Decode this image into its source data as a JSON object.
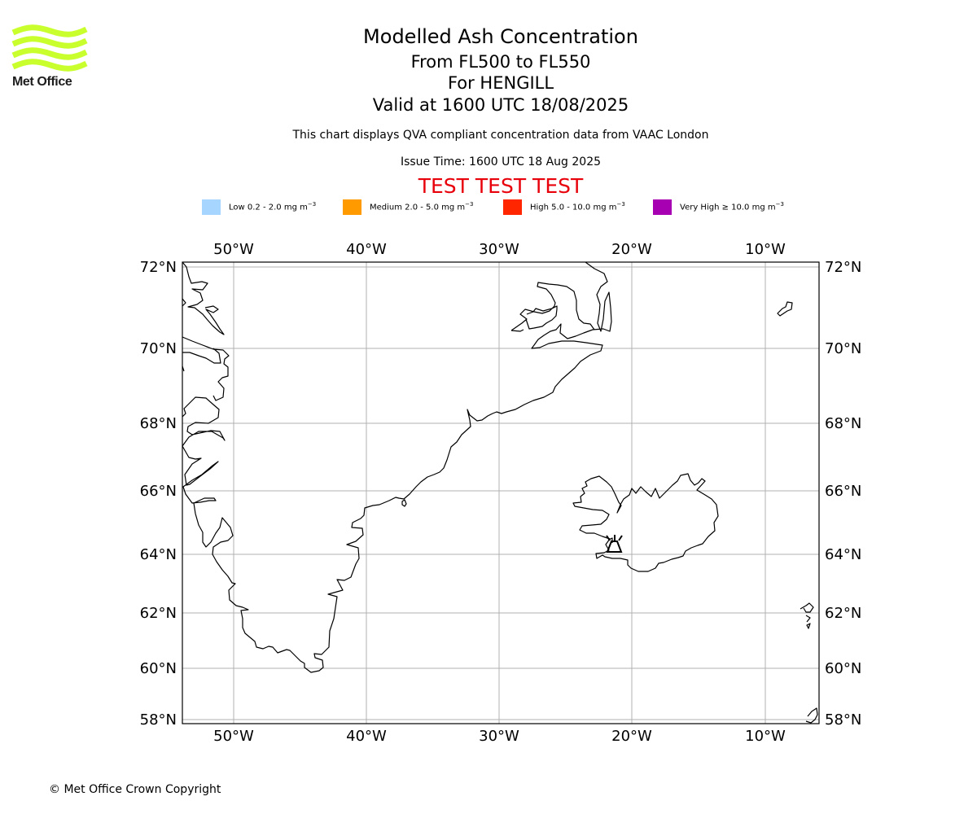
{
  "logo": {
    "text": "Met Office",
    "color": "#c8ff2d"
  },
  "title": {
    "line1": "Modelled Ash Concentration",
    "line2": "From FL500 to FL550",
    "line3": "For HENGILL",
    "line4": "Valid at 1600 UTC 18/08/2025"
  },
  "subtitle": "This chart displays QVA compliant concentration data from VAAC London",
  "issue_time": "Issue Time: 1600 UTC 18 Aug 2025",
  "test_banner": "TEST TEST TEST",
  "legend": [
    {
      "label": "Low 0.2 - 2.0 mg m",
      "color": "#a6d6ff"
    },
    {
      "label": "Medium 2.0 - 5.0 mg m",
      "color": "#ff9a00"
    },
    {
      "label": "High 5.0 - 10.0 mg m",
      "color": "#ff2600"
    },
    {
      "label": "Very High  ≥  10.0 mg m",
      "color": "#a600b2"
    }
  ],
  "legend_unit_exp": "−3",
  "map": {
    "lon_labels": [
      "50°W",
      "40°W",
      "30°W",
      "20°W",
      "10°W"
    ],
    "lat_labels": [
      "72°N",
      "70°N",
      "68°N",
      "66°N",
      "64°N",
      "62°N",
      "60°N",
      "58°N"
    ],
    "volcano_name": "HENGILL",
    "grid_color": "#b0b0b0"
  },
  "copyright": "© Met Office Crown Copyright"
}
